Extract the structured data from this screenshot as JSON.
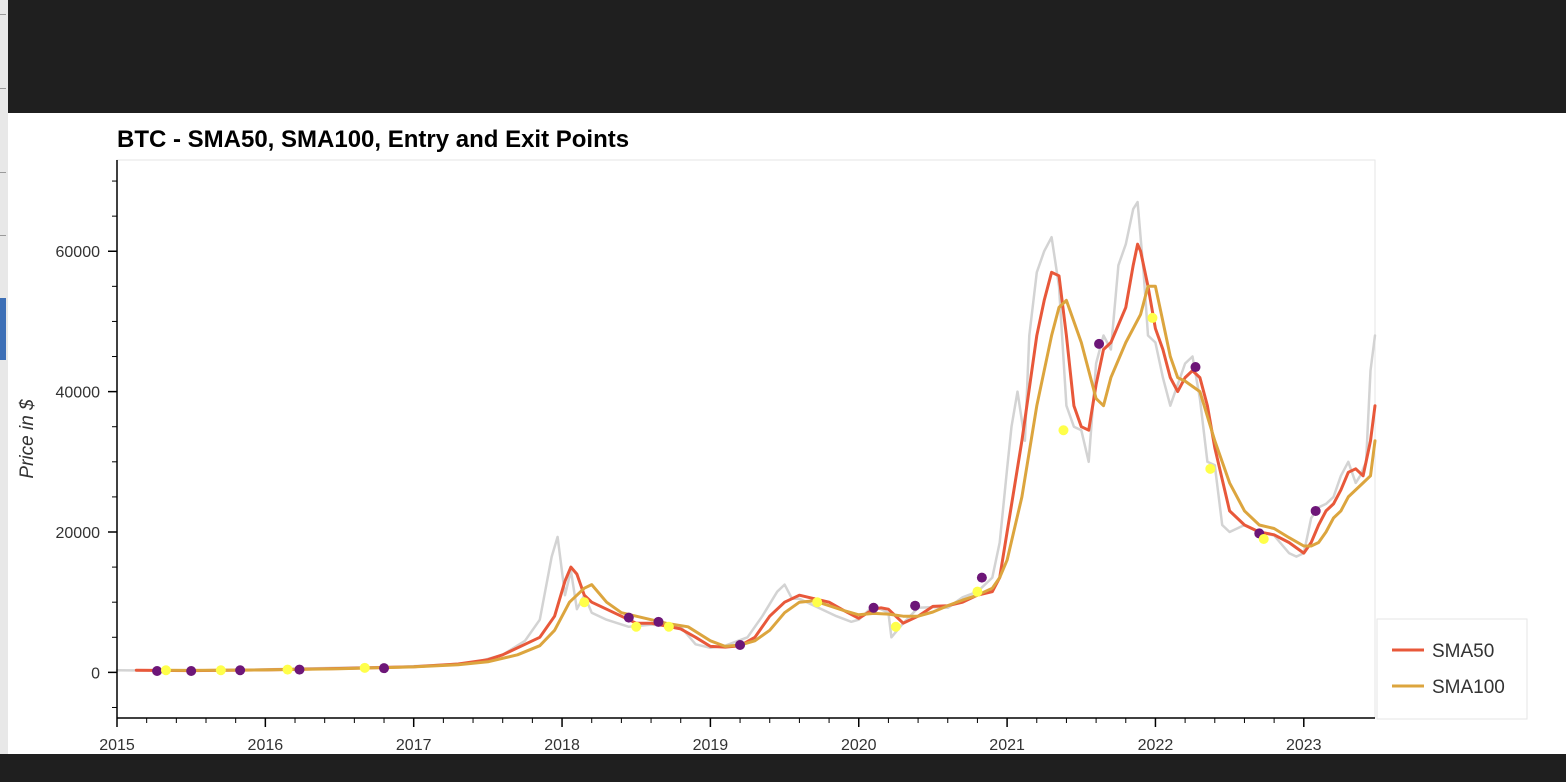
{
  "chart_data": {
    "type": "line",
    "title": "BTC - SMA50, SMA100, Entry and Exit Points",
    "xlabel": "",
    "ylabel": "Price in $",
    "xlim": [
      2015.0,
      2023.48
    ],
    "ylim": [
      -6500,
      73000
    ],
    "x_ticks": [
      {
        "value": 2015,
        "label": "2015"
      },
      {
        "value": 2016,
        "label": "2016"
      },
      {
        "value": 2017,
        "label": "2017"
      },
      {
        "value": 2018,
        "label": "2018"
      },
      {
        "value": 2019,
        "label": "2019"
      },
      {
        "value": 2020,
        "label": "2020"
      },
      {
        "value": 2021,
        "label": "2021"
      },
      {
        "value": 2022,
        "label": "2022"
      },
      {
        "value": 2023,
        "label": "2023"
      }
    ],
    "y_ticks": [
      {
        "value": 0,
        "label": "0"
      },
      {
        "value": 20000,
        "label": "20000"
      },
      {
        "value": 40000,
        "label": "40000"
      },
      {
        "value": 60000,
        "label": "60000"
      }
    ],
    "grid": false,
    "legend_position": "bottom-right",
    "series": [
      {
        "name": "",
        "color": "#d3d3d3",
        "x": [
          2015.0,
          2015.5,
          2016.0,
          2016.5,
          2016.9,
          2017.2,
          2017.4,
          2017.6,
          2017.75,
          2017.85,
          2017.93,
          2017.97,
          2018.02,
          2018.06,
          2018.1,
          2018.15,
          2018.2,
          2018.3,
          2018.45,
          2018.6,
          2018.8,
          2018.9,
          2019.0,
          2019.1,
          2019.25,
          2019.35,
          2019.45,
          2019.5,
          2019.55,
          2019.6,
          2019.7,
          2019.85,
          2019.95,
          2020.0,
          2020.1,
          2020.2,
          2020.22,
          2020.3,
          2020.4,
          2020.5,
          2020.6,
          2020.7,
          2020.8,
          2020.9,
          2020.95,
          2021.0,
          2021.03,
          2021.07,
          2021.12,
          2021.15,
          2021.2,
          2021.25,
          2021.3,
          2021.35,
          2021.4,
          2021.45,
          2021.5,
          2021.55,
          2021.6,
          2021.65,
          2021.7,
          2021.75,
          2021.8,
          2021.85,
          2021.88,
          2021.92,
          2021.95,
          2022.0,
          2022.05,
          2022.1,
          2022.15,
          2022.2,
          2022.25,
          2022.3,
          2022.35,
          2022.4,
          2022.45,
          2022.5,
          2022.6,
          2022.7,
          2022.8,
          2022.9,
          2022.95,
          2023.0,
          2023.05,
          2023.1,
          2023.15,
          2023.2,
          2023.25,
          2023.3,
          2023.35,
          2023.38,
          2023.42,
          2023.45,
          2023.48
        ],
        "values": [
          300,
          250,
          420,
          650,
          780,
          1100,
          1350,
          2500,
          4500,
          7500,
          16500,
          19300,
          11000,
          14500,
          9000,
          11000,
          8500,
          7500,
          6500,
          6800,
          6500,
          4000,
          3500,
          3800,
          5000,
          8000,
          11500,
          12500,
          10500,
          10500,
          9500,
          8000,
          7200,
          7500,
          9500,
          8500,
          5000,
          7000,
          9200,
          9300,
          9200,
          10700,
          11500,
          13500,
          18500,
          29000,
          35000,
          40000,
          33000,
          48000,
          57000,
          60000,
          62000,
          55000,
          38000,
          35000,
          34500,
          30000,
          44000,
          48000,
          46000,
          58000,
          61000,
          66000,
          67000,
          57000,
          48000,
          47000,
          42000,
          38000,
          41000,
          44000,
          45000,
          39000,
          30000,
          29500,
          21000,
          20000,
          21000,
          20000,
          19500,
          17000,
          16500,
          17000,
          22000,
          23500,
          24000,
          25000,
          28000,
          30000,
          27000,
          28000,
          30000,
          43000,
          48000
        ]
      },
      {
        "name": "SMA50",
        "color": "#e8583a",
        "x": [
          2015.13,
          2015.5,
          2016.0,
          2016.5,
          2017.0,
          2017.3,
          2017.5,
          2017.6,
          2017.75,
          2017.85,
          2017.95,
          2018.02,
          2018.06,
          2018.1,
          2018.15,
          2018.2,
          2018.3,
          2018.4,
          2018.5,
          2018.6,
          2018.8,
          2018.9,
          2019.0,
          2019.1,
          2019.2,
          2019.3,
          2019.4,
          2019.5,
          2019.6,
          2019.7,
          2019.8,
          2019.9,
          2020.0,
          2020.1,
          2020.15,
          2020.2,
          2020.3,
          2020.4,
          2020.5,
          2020.6,
          2020.7,
          2020.8,
          2020.9,
          2020.95,
          2021.0,
          2021.1,
          2021.2,
          2021.25,
          2021.3,
          2021.35,
          2021.4,
          2021.45,
          2021.5,
          2021.55,
          2021.6,
          2021.65,
          2021.7,
          2021.8,
          2021.85,
          2021.88,
          2021.9,
          2021.95,
          2022.0,
          2022.05,
          2022.1,
          2022.15,
          2022.2,
          2022.25,
          2022.3,
          2022.35,
          2022.4,
          2022.5,
          2022.6,
          2022.7,
          2022.8,
          2022.9,
          2023.0,
          2023.05,
          2023.1,
          2023.15,
          2023.2,
          2023.25,
          2023.3,
          2023.35,
          2023.4,
          2023.45,
          2023.48
        ],
        "values": [
          300,
          250,
          350,
          550,
          800,
          1200,
          1800,
          2500,
          4000,
          5000,
          8000,
          13000,
          15000,
          14000,
          11000,
          10000,
          9000,
          8000,
          7000,
          7000,
          6200,
          5000,
          3700,
          3600,
          3800,
          5000,
          8000,
          10000,
          11000,
          10500,
          10000,
          8800,
          7700,
          9000,
          9200,
          9000,
          7000,
          8000,
          9400,
          9500,
          10000,
          11000,
          11500,
          13500,
          20000,
          33000,
          48000,
          53000,
          57000,
          56500,
          48000,
          38000,
          35000,
          34500,
          41000,
          46000,
          47000,
          52000,
          58000,
          61000,
          60000,
          55000,
          49000,
          46000,
          42000,
          40000,
          42000,
          43000,
          42000,
          38000,
          32000,
          23000,
          21000,
          20000,
          19600,
          18500,
          17000,
          18500,
          21000,
          23000,
          24000,
          26000,
          28500,
          29000,
          28000,
          33000,
          38000
        ]
      },
      {
        "name": "SMA100",
        "color": "#dca53e",
        "x": [
          2015.27,
          2015.5,
          2016.0,
          2016.5,
          2017.0,
          2017.3,
          2017.5,
          2017.7,
          2017.85,
          2017.95,
          2018.05,
          2018.15,
          2018.2,
          2018.3,
          2018.4,
          2018.5,
          2018.6,
          2018.7,
          2018.85,
          2019.0,
          2019.1,
          2019.2,
          2019.3,
          2019.4,
          2019.5,
          2019.6,
          2019.7,
          2019.8,
          2019.9,
          2020.0,
          2020.1,
          2020.2,
          2020.3,
          2020.4,
          2020.5,
          2020.6,
          2020.7,
          2020.8,
          2020.9,
          2020.95,
          2021.0,
          2021.1,
          2021.2,
          2021.3,
          2021.35,
          2021.4,
          2021.5,
          2021.6,
          2021.65,
          2021.7,
          2021.8,
          2021.9,
          2021.95,
          2022.0,
          2022.05,
          2022.1,
          2022.15,
          2022.2,
          2022.3,
          2022.4,
          2022.5,
          2022.6,
          2022.7,
          2022.8,
          2022.9,
          2023.0,
          2023.05,
          2023.1,
          2023.15,
          2023.2,
          2023.25,
          2023.3,
          2023.4,
          2023.45,
          2023.48
        ],
        "values": [
          300,
          280,
          350,
          530,
          780,
          1100,
          1500,
          2500,
          3800,
          6000,
          10000,
          12000,
          12500,
          10000,
          8500,
          8000,
          7500,
          7000,
          6500,
          4500,
          3700,
          3900,
          4500,
          6000,
          8500,
          10000,
          10200,
          9500,
          8800,
          8200,
          8400,
          8300,
          8000,
          8000,
          8600,
          9500,
          10300,
          11000,
          12000,
          13500,
          16000,
          25000,
          38000,
          48000,
          52000,
          53000,
          47000,
          39000,
          38000,
          42000,
          47000,
          51000,
          55000,
          55000,
          50000,
          45000,
          42000,
          41500,
          40000,
          33000,
          27000,
          23000,
          21000,
          20500,
          19200,
          18000,
          18000,
          18500,
          20000,
          22000,
          23000,
          25000,
          27000,
          28000,
          33000
        ]
      }
    ],
    "entry_points": {
      "color": "#ffff4a",
      "x": [
        2015.33,
        2015.7,
        2016.15,
        2016.67,
        2018.15,
        2018.5,
        2018.72,
        2019.72,
        2020.25,
        2020.8,
        2021.38,
        2021.98,
        2022.37,
        2022.73
      ],
      "values": [
        300,
        300,
        400,
        650,
        10000,
        6500,
        6500,
        10000,
        6500,
        11500,
        34500,
        50500,
        29000,
        19000
      ]
    },
    "exit_points": {
      "color": "#6d1678",
      "x": [
        2015.27,
        2015.5,
        2015.83,
        2016.23,
        2016.8,
        2018.45,
        2018.65,
        2019.2,
        2020.1,
        2020.38,
        2020.83,
        2021.62,
        2022.27,
        2022.7,
        2023.08
      ],
      "values": [
        200,
        200,
        300,
        400,
        600,
        7800,
        7200,
        3900,
        9200,
        9500,
        13500,
        46800,
        43500,
        19800,
        23000
      ]
    },
    "legend": [
      {
        "label": "SMA50",
        "color": "#e8583a"
      },
      {
        "label": "SMA100",
        "color": "#dca53e"
      }
    ]
  }
}
